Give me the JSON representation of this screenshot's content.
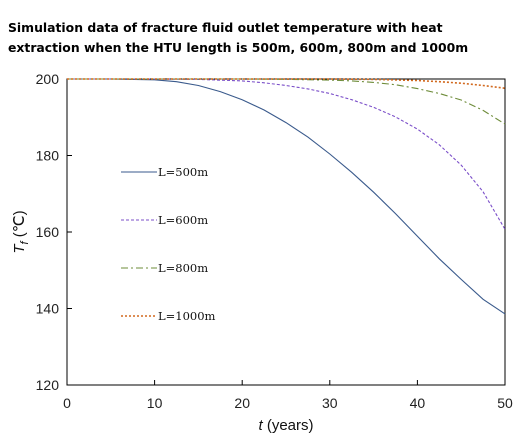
{
  "title_lines": [
    "Simulation data of fracture fluid outlet temperature with heat",
    "extraction when the HTU length is 500m, 600m, 800m and 1000m"
  ],
  "chart_data": {
    "type": "line",
    "title": "Simulation data of fracture fluid outlet temperature with heat extraction when the HTU length is 500m, 600m, 800m and 1000m",
    "xlabel_var": "t",
    "xlabel_rest": " (years)",
    "ylabel_var": "T",
    "ylabel_sub": "f",
    "ylabel_unit": " (℃)",
    "xlim": [
      0,
      50
    ],
    "ylim": [
      120,
      200
    ],
    "xticks": [
      0,
      10,
      20,
      30,
      40,
      50
    ],
    "yticks": [
      120,
      140,
      160,
      180,
      200
    ],
    "grid": false,
    "legend_position": "left",
    "series": [
      {
        "name": "L=500m",
        "color": "#3a5a8c",
        "dash": "solid",
        "x": [
          0,
          5,
          10,
          12.5,
          15,
          17.5,
          20,
          22.5,
          25,
          27.5,
          30,
          32.5,
          35,
          37.5,
          40,
          42.5,
          45,
          47.5,
          50
        ],
        "y": [
          200,
          200,
          199.8,
          199.3,
          198.3,
          196.7,
          194.6,
          191.9,
          188.6,
          184.8,
          180.4,
          175.6,
          170.4,
          164.8,
          158.9,
          153,
          147.6,
          142.4,
          138.6
        ]
      },
      {
        "name": "L=600m",
        "color": "#7b4fc9",
        "dash": "dashed",
        "x": [
          0,
          10,
          15,
          20,
          22.5,
          25,
          27.5,
          30,
          32.5,
          35,
          37.5,
          40,
          42.5,
          45,
          47.5,
          50
        ],
        "y": [
          200,
          200,
          199.9,
          199.5,
          199,
          198.3,
          197.4,
          196.2,
          194.6,
          192.6,
          190.1,
          186.9,
          182.8,
          177.5,
          170.5,
          160.7
        ]
      },
      {
        "name": "L=800m",
        "color": "#6e8c3a",
        "dash": "dashdot",
        "x": [
          0,
          20,
          25,
          30,
          32.5,
          35,
          37.5,
          40,
          42.5,
          45,
          47.5,
          50
        ],
        "y": [
          200,
          200,
          199.9,
          199.7,
          199.5,
          199.1,
          198.5,
          197.5,
          196.2,
          194.5,
          191.8,
          188.2
        ]
      },
      {
        "name": "L=1000m",
        "color": "#d2691e",
        "dash": "dotted",
        "x": [
          0,
          30,
          35,
          40,
          42.5,
          45,
          47.5,
          50
        ],
        "y": [
          200,
          200,
          199.9,
          199.6,
          199.3,
          198.9,
          198.3,
          197.6
        ]
      }
    ]
  }
}
